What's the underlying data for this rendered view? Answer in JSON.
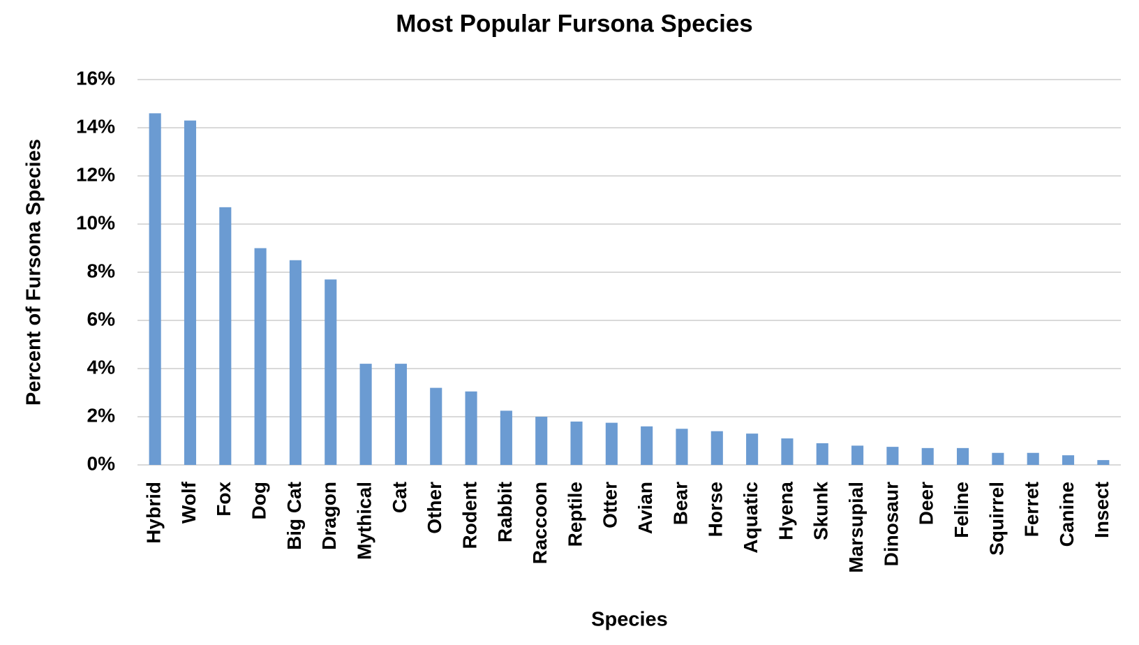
{
  "chart_data": {
    "type": "bar",
    "title": "Most Popular Fursona Species",
    "x_label": "Species",
    "y_label": "Percent of Fursona Species",
    "categories": [
      "Hybrid",
      "Wolf",
      "Fox",
      "Dog",
      "Big Cat",
      "Dragon",
      "Mythical",
      "Cat",
      "Other",
      "Rodent",
      "Rabbit",
      "Raccoon",
      "Reptile",
      "Otter",
      "Avian",
      "Bear",
      "Horse",
      "Aquatic",
      "Hyena",
      "Skunk",
      "Marsupial",
      "Dinosaur",
      "Deer",
      "Feline",
      "Squirrel",
      "Ferret",
      "Canine",
      "Insect"
    ],
    "values": [
      14.6,
      14.3,
      10.7,
      9.0,
      8.5,
      7.7,
      4.2,
      4.2,
      3.2,
      3.05,
      2.25,
      2.0,
      1.8,
      1.75,
      1.6,
      1.5,
      1.4,
      1.3,
      1.1,
      0.9,
      0.8,
      0.75,
      0.7,
      0.7,
      0.5,
      0.5,
      0.4,
      0.2
    ],
    "color": "#6b9bd2",
    "ylim": [
      0,
      16
    ],
    "yticks": [
      {
        "value": 0,
        "label": "0%"
      },
      {
        "value": 2,
        "label": "2%"
      },
      {
        "value": 4,
        "label": "4%"
      },
      {
        "value": 6,
        "label": "6%"
      },
      {
        "value": 8,
        "label": "8%"
      },
      {
        "value": 10,
        "label": "10%"
      },
      {
        "value": 12,
        "label": "12%"
      },
      {
        "value": 14,
        "label": "14%"
      },
      {
        "value": 16,
        "label": "16%"
      }
    ],
    "grid": true
  }
}
